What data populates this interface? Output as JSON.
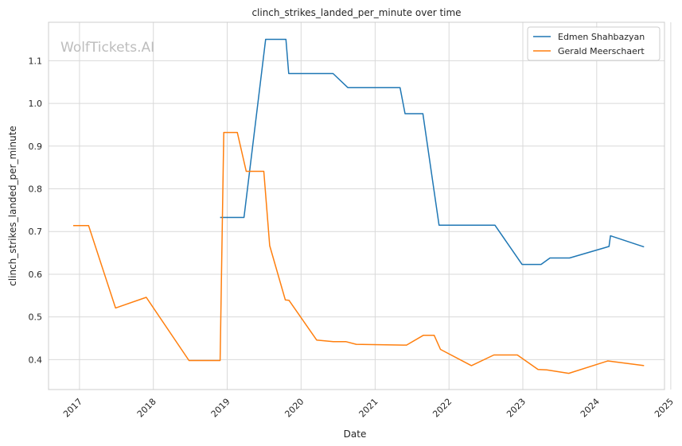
{
  "chart_data": {
    "type": "line",
    "title": "clinch_strikes_landed_per_minute over time",
    "xlabel": "Date",
    "ylabel": "clinch_strikes_landed_per_minute",
    "watermark": "WolfTickets.AI",
    "xlim": [
      "2016-08-01",
      "2024-12-01"
    ],
    "ylim": [
      0.33,
      1.19
    ],
    "x_ticks": [
      "2017",
      "2018",
      "2019",
      "2020",
      "2021",
      "2022",
      "2023",
      "2024",
      "2025"
    ],
    "y_ticks": [
      "0.4",
      "0.5",
      "0.6",
      "0.7",
      "0.8",
      "0.9",
      "1.0",
      "1.1"
    ],
    "grid": true,
    "legend_position": "top-right",
    "series": [
      {
        "name": "Edmen Shahbazyan",
        "color": "#1f77b4",
        "points": [
          [
            "2018-11-27",
            0.733
          ],
          [
            "2019-03-25",
            0.733
          ],
          [
            "2019-07-10",
            1.15
          ],
          [
            "2019-10-18",
            1.15
          ],
          [
            "2019-11-01",
            1.07
          ],
          [
            "2020-06-07",
            1.07
          ],
          [
            "2020-08-19",
            1.037
          ],
          [
            "2021-05-04",
            1.037
          ],
          [
            "2021-05-29",
            0.976
          ],
          [
            "2021-08-25",
            0.976
          ],
          [
            "2021-11-13",
            0.715
          ],
          [
            "2022-08-16",
            0.715
          ],
          [
            "2022-12-28",
            0.623
          ],
          [
            "2023-04-01",
            0.623
          ],
          [
            "2023-05-15",
            0.638
          ],
          [
            "2023-08-20",
            0.638
          ],
          [
            "2024-03-02",
            0.665
          ],
          [
            "2024-03-09",
            0.69
          ],
          [
            "2024-08-22",
            0.664
          ]
        ]
      },
      {
        "name": "Gerald Meerschaert",
        "color": "#ff7f0e",
        "points": [
          [
            "2016-12-01",
            0.714
          ],
          [
            "2017-02-15",
            0.714
          ],
          [
            "2017-06-28",
            0.521
          ],
          [
            "2017-11-27",
            0.546
          ],
          [
            "2018-06-26",
            0.398
          ],
          [
            "2018-11-27",
            0.398
          ],
          [
            "2018-12-15",
            0.932
          ],
          [
            "2019-02-20",
            0.932
          ],
          [
            "2019-04-05",
            0.841
          ],
          [
            "2019-07-01",
            0.841
          ],
          [
            "2019-07-30",
            0.667
          ],
          [
            "2019-10-15",
            0.54
          ],
          [
            "2019-11-02",
            0.539
          ],
          [
            "2020-03-18",
            0.446
          ],
          [
            "2020-06-08",
            0.442
          ],
          [
            "2020-08-11",
            0.442
          ],
          [
            "2020-09-30",
            0.436
          ],
          [
            "2021-06-05",
            0.434
          ],
          [
            "2021-08-27",
            0.457
          ],
          [
            "2021-10-20",
            0.457
          ],
          [
            "2021-11-20",
            0.424
          ],
          [
            "2022-04-22",
            0.386
          ],
          [
            "2022-08-11",
            0.411
          ],
          [
            "2022-12-05",
            0.411
          ],
          [
            "2023-03-17",
            0.377
          ],
          [
            "2023-04-29",
            0.376
          ],
          [
            "2023-08-16",
            0.368
          ],
          [
            "2024-02-25",
            0.397
          ],
          [
            "2024-08-22",
            0.386
          ]
        ]
      }
    ]
  }
}
